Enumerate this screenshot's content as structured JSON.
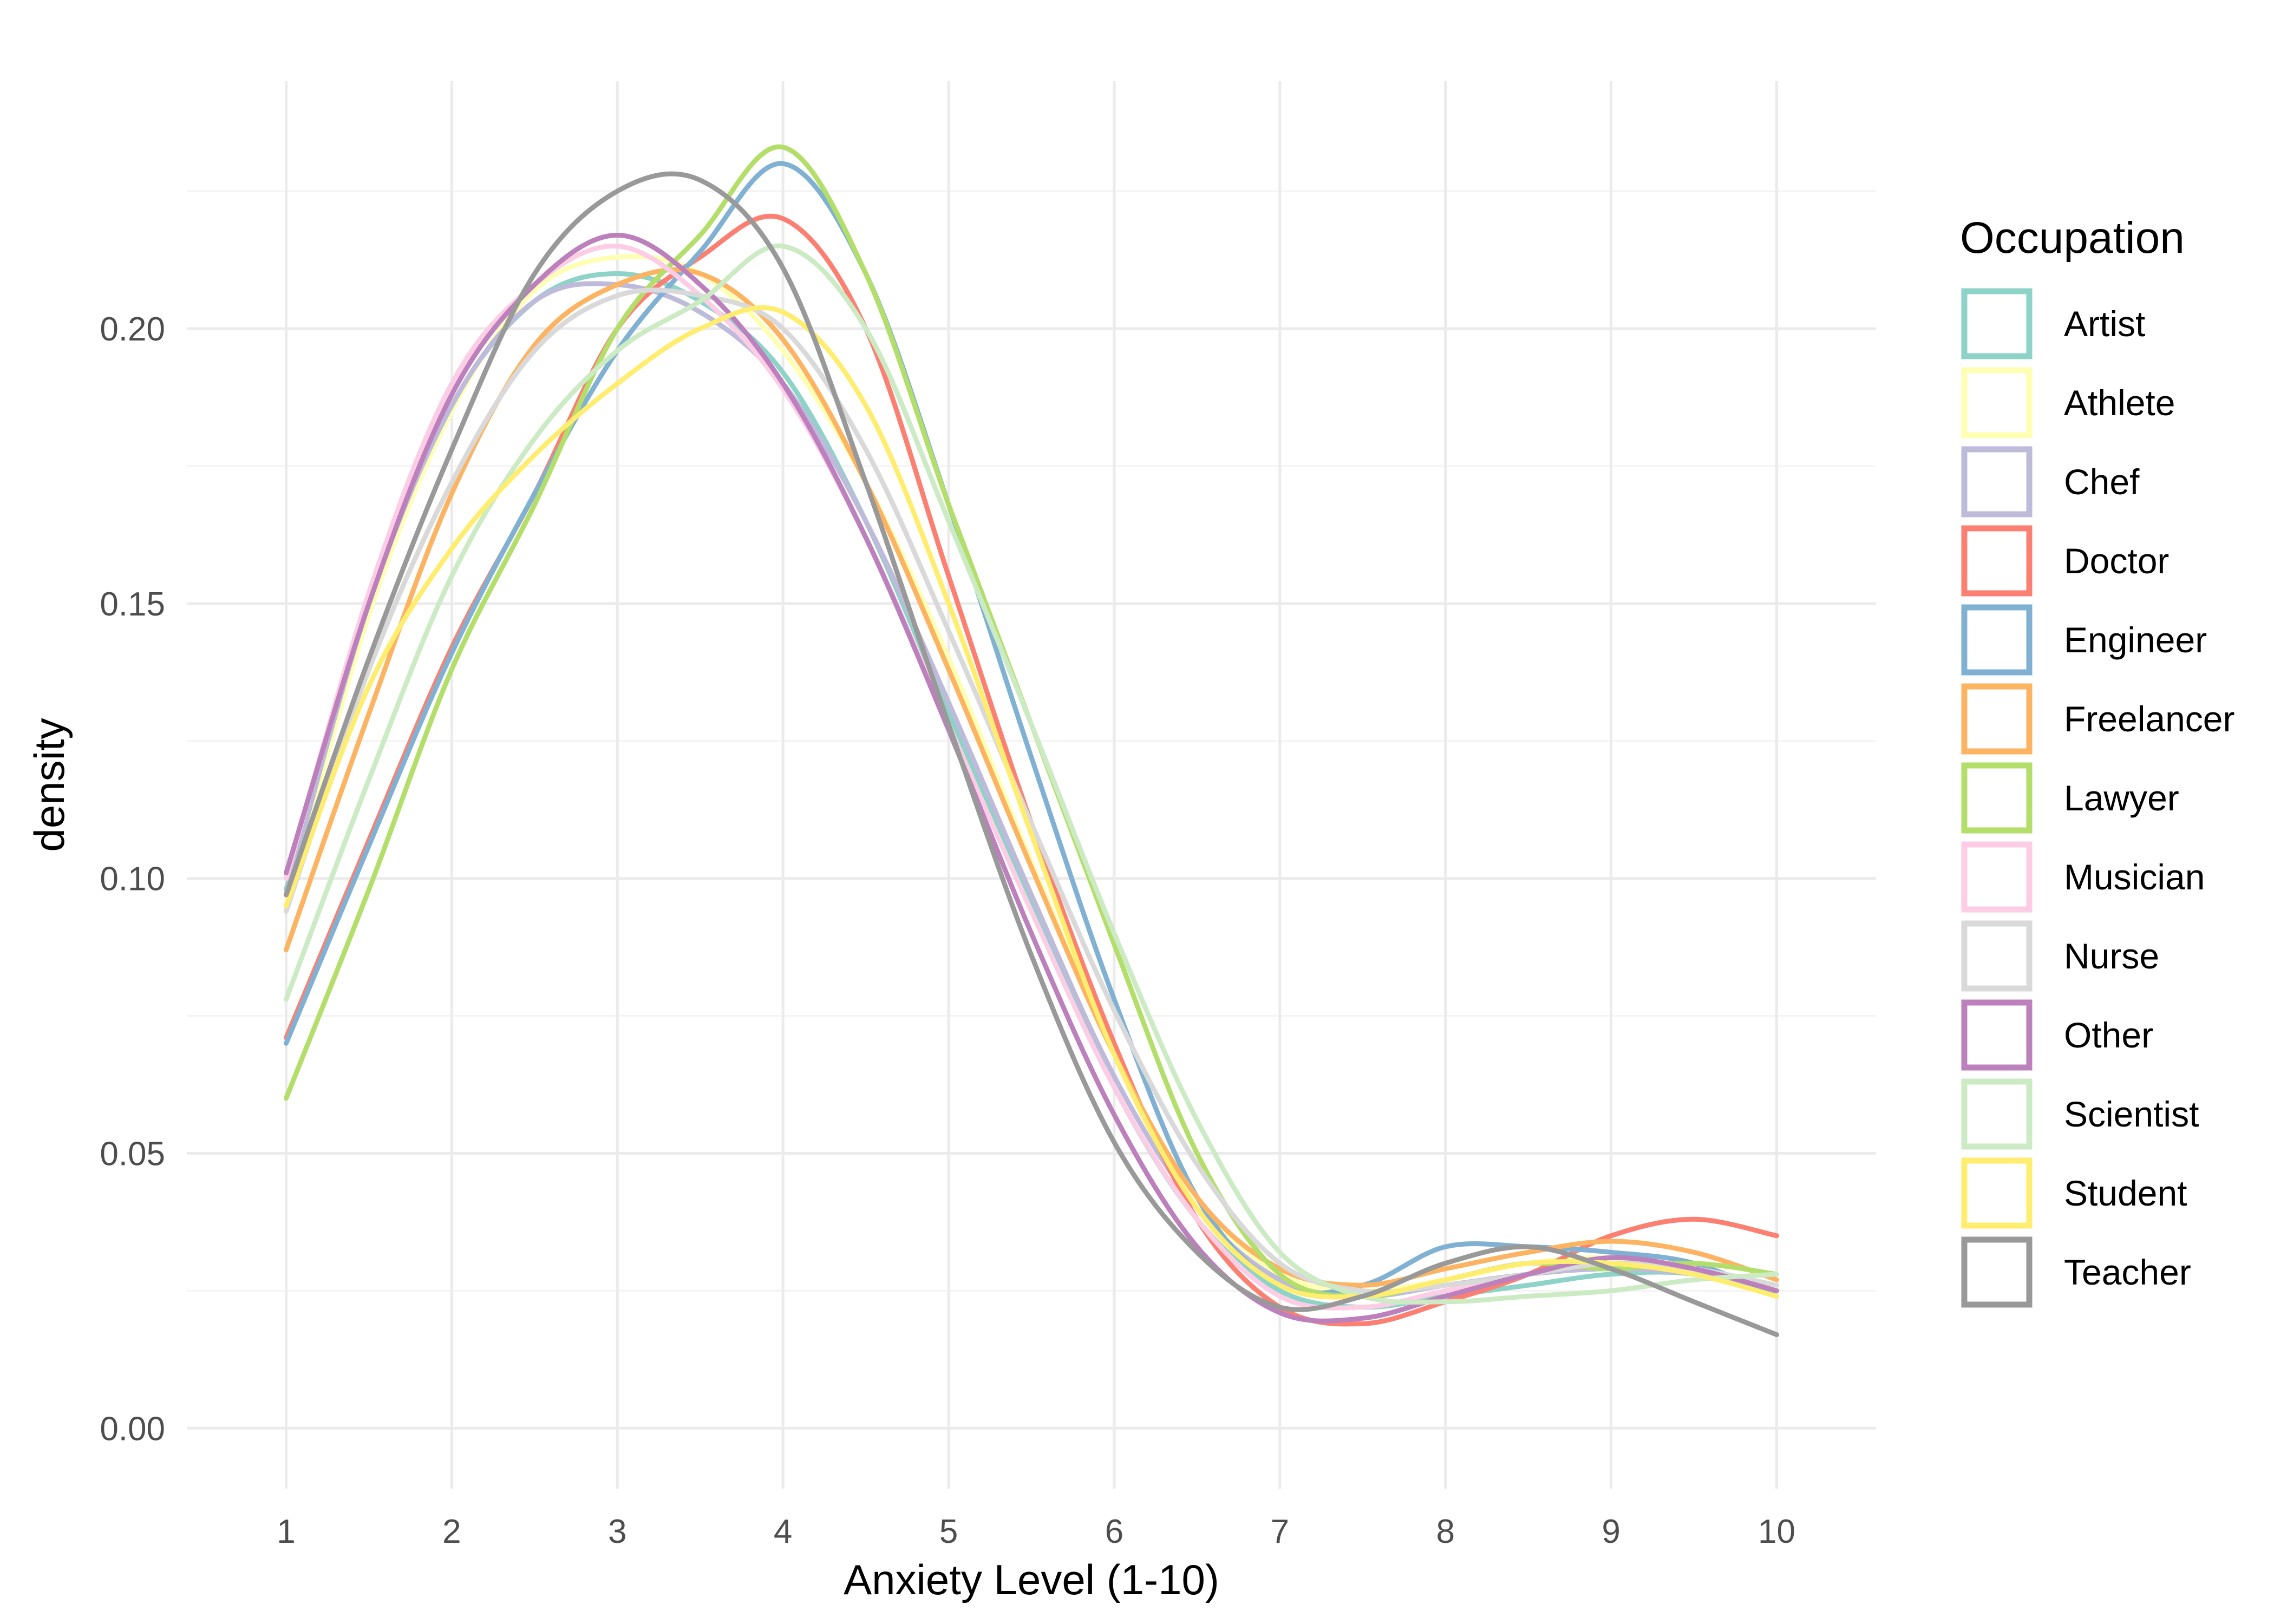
{
  "chart_data": {
    "type": "line",
    "title": "",
    "xlabel": "Anxiety Level (1-10)",
    "ylabel": "density",
    "xlim": [
      0.4,
      10.6
    ],
    "ylim": [
      -0.011,
      0.245
    ],
    "x_ticks": [
      1,
      2,
      3,
      4,
      5,
      6,
      7,
      8,
      9,
      10
    ],
    "y_ticks": [
      0,
      0.05,
      0.1,
      0.15,
      0.2
    ],
    "y_tick_labels": [
      "0.00",
      "0.05",
      "0.10",
      "0.15",
      "0.20"
    ],
    "grid": true,
    "legend": {
      "title": "Occupation",
      "position": "right"
    },
    "x": [
      1,
      1.5,
      2,
      2.5,
      3,
      3.5,
      4,
      4.5,
      5,
      5.5,
      6,
      6.5,
      7,
      7.5,
      8,
      8.5,
      9,
      9.5,
      10
    ],
    "series": [
      {
        "name": "Artist",
        "color": "#8DD3C7",
        "values": [
          0.098,
          0.15,
          0.186,
          0.205,
          0.21,
          0.205,
          0.192,
          0.165,
          0.13,
          0.095,
          0.062,
          0.038,
          0.025,
          0.022,
          0.024,
          0.026,
          0.028,
          0.028,
          0.024
        ]
      },
      {
        "name": "Athlete",
        "color": "#FFFFB3",
        "values": [
          0.095,
          0.148,
          0.185,
          0.207,
          0.213,
          0.21,
          0.196,
          0.172,
          0.14,
          0.103,
          0.068,
          0.042,
          0.028,
          0.025,
          0.027,
          0.03,
          0.031,
          0.029,
          0.026
        ]
      },
      {
        "name": "Chef",
        "color": "#BEBADA",
        "values": [
          0.097,
          0.15,
          0.186,
          0.205,
          0.208,
          0.203,
          0.19,
          0.165,
          0.132,
          0.097,
          0.064,
          0.04,
          0.027,
          0.024,
          0.026,
          0.028,
          0.029,
          0.028,
          0.025
        ]
      },
      {
        "name": "Doctor",
        "color": "#FB8072",
        "values": [
          0.071,
          0.107,
          0.142,
          0.17,
          0.2,
          0.213,
          0.22,
          0.2,
          0.155,
          0.11,
          0.07,
          0.038,
          0.022,
          0.019,
          0.023,
          0.028,
          0.035,
          0.038,
          0.035
        ]
      },
      {
        "name": "Engineer",
        "color": "#80B1D3",
        "values": [
          0.07,
          0.106,
          0.141,
          0.17,
          0.196,
          0.214,
          0.23,
          0.21,
          0.168,
          0.122,
          0.078,
          0.042,
          0.026,
          0.026,
          0.033,
          0.033,
          0.032,
          0.03,
          0.024
        ]
      },
      {
        "name": "Freelancer",
        "color": "#FDB462",
        "values": [
          0.087,
          0.13,
          0.17,
          0.197,
          0.208,
          0.21,
          0.198,
          0.172,
          0.138,
          0.102,
          0.068,
          0.042,
          0.029,
          0.026,
          0.029,
          0.032,
          0.034,
          0.032,
          0.027
        ]
      },
      {
        "name": "Lawyer",
        "color": "#B3DE69",
        "values": [
          0.06,
          0.098,
          0.138,
          0.168,
          0.2,
          0.217,
          0.233,
          0.21,
          0.168,
          0.128,
          0.088,
          0.05,
          0.028,
          0.024,
          0.027,
          0.03,
          0.029,
          0.03,
          0.028
        ]
      },
      {
        "name": "Musician",
        "color": "#FCCDE5",
        "values": [
          0.1,
          0.152,
          0.19,
          0.208,
          0.215,
          0.206,
          0.189,
          0.162,
          0.128,
          0.094,
          0.062,
          0.038,
          0.024,
          0.022,
          0.025,
          0.028,
          0.03,
          0.029,
          0.025
        ]
      },
      {
        "name": "Nurse",
        "color": "#D9D9D9",
        "values": [
          0.094,
          0.138,
          0.172,
          0.196,
          0.206,
          0.206,
          0.2,
          0.178,
          0.145,
          0.11,
          0.076,
          0.048,
          0.03,
          0.025,
          0.026,
          0.028,
          0.03,
          0.029,
          0.026
        ]
      },
      {
        "name": "Other",
        "color": "#BC80BD",
        "values": [
          0.101,
          0.15,
          0.188,
          0.208,
          0.217,
          0.208,
          0.19,
          0.162,
          0.127,
          0.09,
          0.057,
          0.033,
          0.021,
          0.02,
          0.024,
          0.028,
          0.031,
          0.029,
          0.025
        ]
      },
      {
        "name": "Scientist",
        "color": "#CCEBC5",
        "values": [
          0.078,
          0.118,
          0.155,
          0.18,
          0.196,
          0.205,
          0.215,
          0.2,
          0.165,
          0.128,
          0.09,
          0.056,
          0.032,
          0.024,
          0.023,
          0.024,
          0.025,
          0.027,
          0.028
        ]
      },
      {
        "name": "Student",
        "color": "#FFED6F",
        "values": [
          0.095,
          0.135,
          0.16,
          0.177,
          0.19,
          0.2,
          0.203,
          0.186,
          0.15,
          0.108,
          0.068,
          0.04,
          0.026,
          0.024,
          0.027,
          0.03,
          0.03,
          0.028,
          0.024
        ]
      },
      {
        "name": "Teacher",
        "color": "#999999",
        "values": [
          0.097,
          0.14,
          0.178,
          0.21,
          0.225,
          0.227,
          0.211,
          0.172,
          0.128,
          0.086,
          0.052,
          0.032,
          0.022,
          0.024,
          0.03,
          0.033,
          0.029,
          0.023,
          0.017
        ]
      }
    ]
  }
}
